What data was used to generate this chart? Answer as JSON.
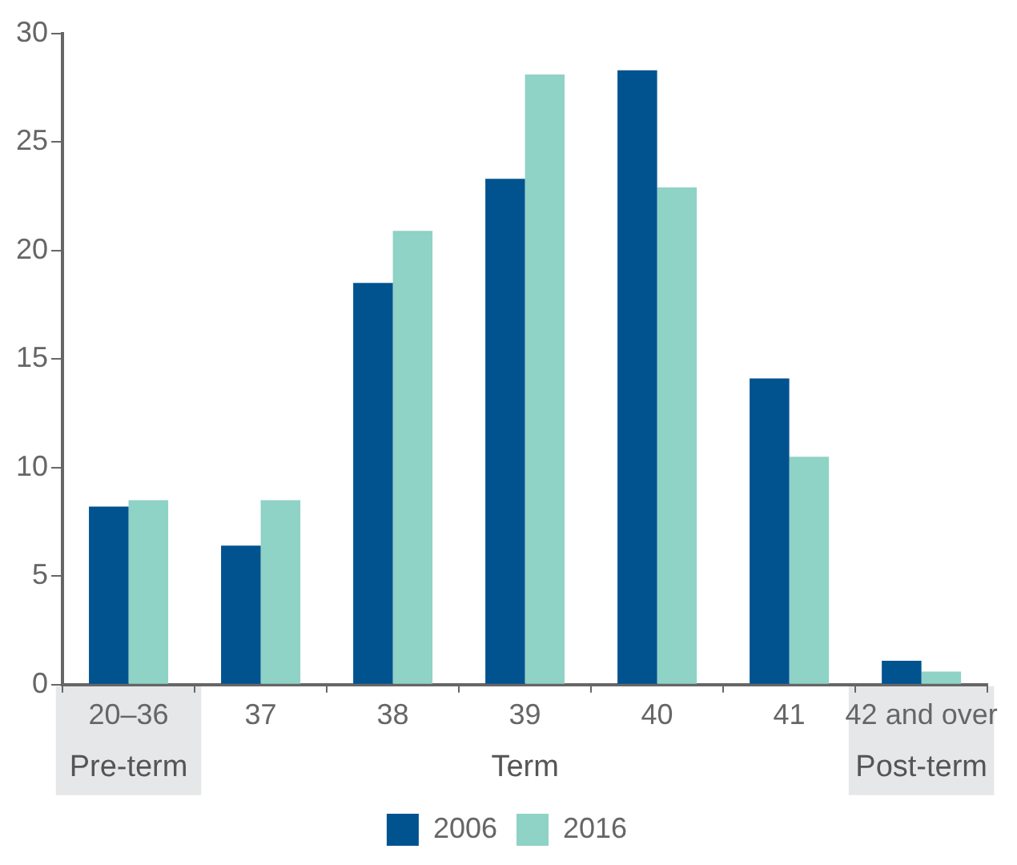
{
  "chart_data": {
    "type": "bar",
    "categories": [
      "20–36",
      "37",
      "38",
      "39",
      "40",
      "41",
      "42 and over"
    ],
    "series": [
      {
        "name": "2006",
        "color": "#01538f",
        "values": [
          8.2,
          6.4,
          18.5,
          23.3,
          28.3,
          14.1,
          1.1
        ]
      },
      {
        "name": "2016",
        "color": "#8fd2c6",
        "values": [
          8.5,
          8.5,
          20.9,
          28.1,
          22.9,
          10.5,
          0.6
        ]
      }
    ],
    "ylim": [
      0,
      30
    ],
    "yticks": [
      0,
      5,
      10,
      15,
      20,
      25,
      30
    ],
    "grid": false,
    "legend": "bottom",
    "annotations": [
      "Pre-term",
      "Term",
      "Post-term"
    ]
  }
}
